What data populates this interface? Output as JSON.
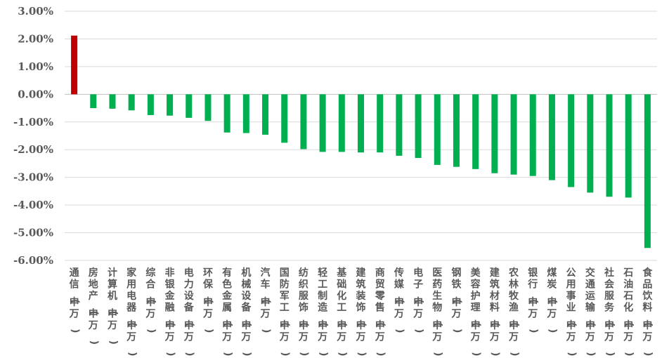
{
  "chart_data": {
    "type": "bar",
    "title": "",
    "xlabel": "",
    "ylabel": "",
    "ylim": [
      -6.0,
      3.0
    ],
    "yticks": [
      "3.00%",
      "2.00%",
      "1.00%",
      "0.00%",
      "-1.00%",
      "-2.00%",
      "-3.00%",
      "-4.00%",
      "-5.00%",
      "-6.00%"
    ],
    "grid": true,
    "legend": "none",
    "colors": {
      "positive": "#c00000",
      "negative": "#00b050"
    },
    "categories": [
      "通信(申万)",
      "房地产(申万)",
      "计算机(申万)",
      "家用电器(申万)",
      "综合(申万)",
      "非银金融(申万)",
      "电力设备(申万)",
      "环保(申万)",
      "有色金属(申万)",
      "机械设备(申万)",
      "汽车(申万)",
      "国防军工(申万)",
      "纺织服饰(申万)",
      "轻工制造(申万)",
      "基础化工(申万)",
      "建筑装饰(申万)",
      "商贸零售(申万)",
      "传媒(申万)",
      "电子(申万)",
      "医药生物(申万)",
      "钢铁(申万)",
      "美容护理(申万)",
      "建筑材料(申万)",
      "农林牧渔(申万)",
      "银行(申万)",
      "煤炭(申万)",
      "公用事业(申万)",
      "交通运输(申万)",
      "社会服务(申万)",
      "石油石化(申万)",
      "食品饮料(申万)"
    ],
    "values": [
      2.12,
      -0.5,
      -0.52,
      -0.58,
      -0.75,
      -0.77,
      -0.85,
      -0.96,
      -1.38,
      -1.4,
      -1.46,
      -1.75,
      -1.98,
      -2.08,
      -2.08,
      -2.1,
      -2.1,
      -2.22,
      -2.3,
      -2.55,
      -2.62,
      -2.7,
      -2.85,
      -2.9,
      -2.95,
      -3.1,
      -3.35,
      -3.55,
      -3.7,
      -3.73,
      -5.55
    ]
  }
}
